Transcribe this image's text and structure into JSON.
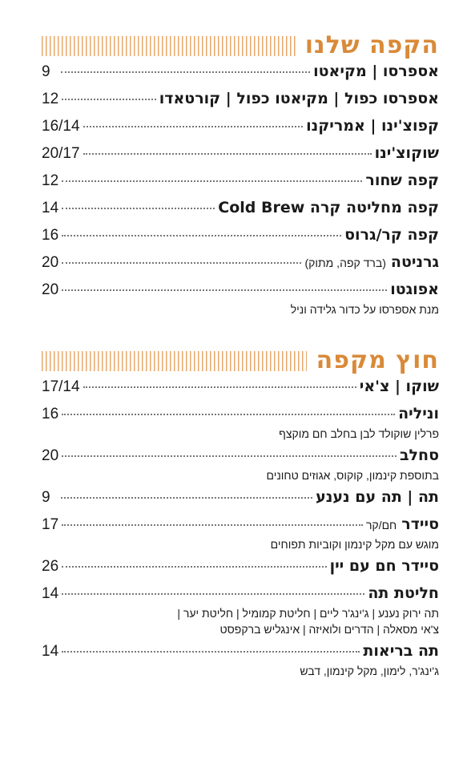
{
  "sections": [
    {
      "title": "הקפה שלנו",
      "items": [
        {
          "name": "אספרסו | מקיאטו",
          "price": "9"
        },
        {
          "name": "אספרסו כפול | מקיאטו כפול | קורטאדו",
          "price": "12"
        },
        {
          "name": "קפוצ'ינו | אמריקנו",
          "price": "16/14"
        },
        {
          "name": "שוקוצ'ינו",
          "price": "20/17"
        },
        {
          "name": "קפה שחור",
          "price": "12"
        },
        {
          "name": "קפה מחליטה קרה Cold Brew",
          "price": "14"
        },
        {
          "name": "קפה קר/גרוס",
          "price": "16"
        },
        {
          "name": "גרניטה",
          "note": "(ברד קפה, מתוק)",
          "price": "20"
        },
        {
          "name": "אפוגטו",
          "price": "20",
          "desc": [
            "מנת אספרסו על כדור גלידה וניל"
          ]
        }
      ]
    },
    {
      "title": "חוץ מקפה",
      "items": [
        {
          "name": "שוקו | צ'אי",
          "price": "17/14"
        },
        {
          "name": "וניליה",
          "price": "16",
          "desc": [
            "פרלין שוקולד לבן בחלב חם מוקצף"
          ]
        },
        {
          "name": "סחלב",
          "price": "20",
          "desc": [
            "בתוספת קינמון, קוקוס, אגוזים טחונים"
          ]
        },
        {
          "name": "תה | תה עם נענע",
          "price": "9"
        },
        {
          "name": "סיידר",
          "note": "חם/קר",
          "price": "17",
          "desc": [
            "מוגש עם מקל קינמון וקוביות תפוחים"
          ]
        },
        {
          "name": "סיידר חם עם יין",
          "price": "26"
        },
        {
          "name": "חליטת תה",
          "price": "14",
          "desc": [
            "תה ירוק נענע | ג'ינג'ר ליים | חליטת קמומיל | חליטת יער |",
            "צ'אי מסאלה | הדרים ולואיזה | אינגליש ברקפסט"
          ]
        },
        {
          "name": "תה בריאות",
          "price": "14",
          "desc": [
            "ג'ינג'ר, לימון, מקל קינמון, דבש"
          ]
        }
      ]
    }
  ]
}
